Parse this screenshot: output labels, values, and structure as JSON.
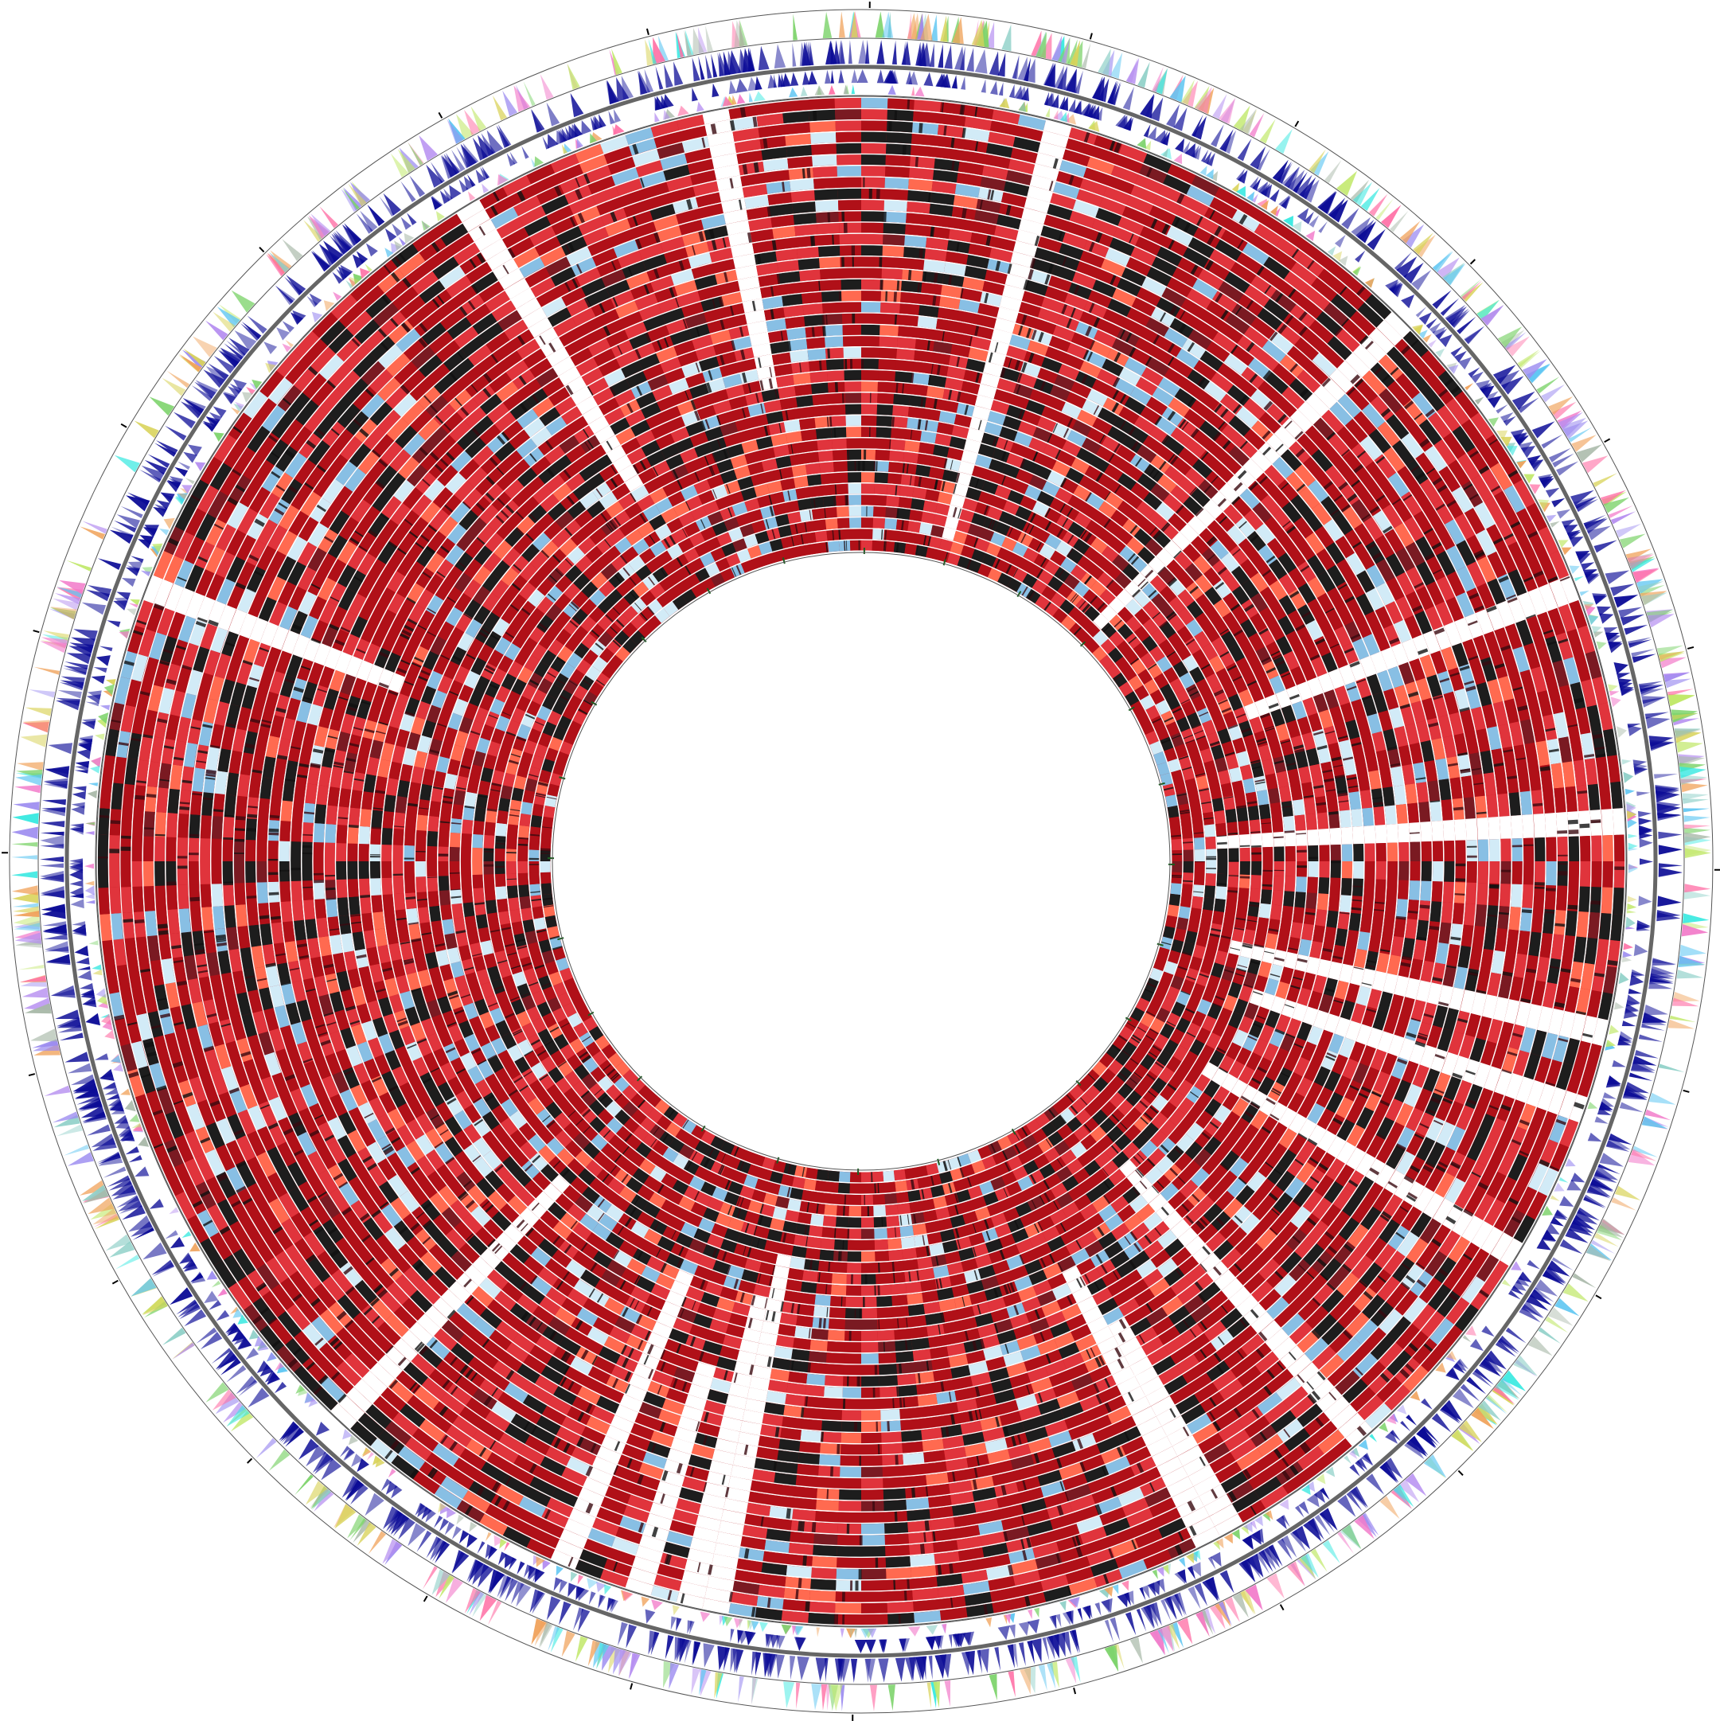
{
  "figure": {
    "kind": "circular-genome-map",
    "background": "#ffffff"
  },
  "colors": {
    "ring_outline": "#555555",
    "backbone": "#666666",
    "tick": "#000000",
    "inner_tick": "#1b5e20",
    "forward_cds": "#0b0b96",
    "reverse_cds": "#0b0b96",
    "cog_palette": [
      "#33e8e0",
      "#7dd36b",
      "#f279c9",
      "#9b8bf0",
      "#f0a25a",
      "#a8b8a8",
      "#5ec6f2",
      "#c1e86a",
      "#ff6fa5",
      "#8fd0c8",
      "#d9d35a",
      "#b48cf0"
    ],
    "identity_heatmap": {
      "high": "#b01018",
      "mid": "#e0343c",
      "low": "#ff6a50",
      "divergent": "#1d1d1d",
      "partial": "#88bfe4",
      "absent_light": "#d2ebf7",
      "gap": "#ffffff"
    }
  },
  "tracks": [
    {
      "id": "outer-cog-forward",
      "type": "features",
      "role": "COG categories, forward strand"
    },
    {
      "id": "cds-forward",
      "type": "features",
      "role": "CDS, forward strand"
    },
    {
      "id": "backbone",
      "type": "line",
      "role": "genome backbone"
    },
    {
      "id": "cds-reverse",
      "type": "features",
      "role": "CDS, reverse strand"
    },
    {
      "id": "inner-cog-reverse",
      "type": "features",
      "role": "COG categories, reverse strand"
    },
    {
      "id": "comparison-heatmap",
      "type": "heatmap",
      "role": "BLAST identity rings",
      "ring_count": 40
    }
  ],
  "legend": null
}
